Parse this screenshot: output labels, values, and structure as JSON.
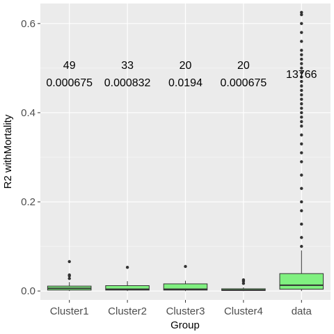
{
  "chart_data": {
    "type": "boxplot",
    "title": "",
    "xlabel": "Group",
    "ylabel": "R2 withMortality",
    "ylim": [
      -0.02,
      0.645
    ],
    "yticks": [
      0.0,
      0.2,
      0.4,
      0.6
    ],
    "ytick_labels": [
      "0.0",
      "0.2",
      "0.4",
      "0.6"
    ],
    "grid": true,
    "categories": [
      "Cluster1",
      "Cluster2",
      "Cluster3",
      "Cluster4",
      "data"
    ],
    "colors": {
      "panel_bg": "#ebebeb",
      "grid": "#ffffff",
      "box_fill": "#80f080",
      "box_line": "#333333",
      "outlier": "#333333"
    },
    "annotations": [
      {
        "count": "49",
        "value": "0.000675"
      },
      {
        "count": "33",
        "value": "0.000832"
      },
      {
        "count": "20",
        "value": "0.0194"
      },
      {
        "count": "20",
        "value": "0.000675"
      },
      {
        "count": "13766",
        "value": ""
      }
    ],
    "boxes": [
      {
        "q1": 0.002,
        "median": 0.006,
        "q3": 0.011,
        "whisker_low": 0.0,
        "whisker_high": 0.02,
        "outliers": [
          0.028,
          0.034,
          0.036,
          0.066
        ]
      },
      {
        "q1": 0.002,
        "median": 0.004,
        "q3": 0.012,
        "whisker_low": 0.0,
        "whisker_high": 0.022,
        "outliers": [
          0.053
        ]
      },
      {
        "q1": 0.002,
        "median": 0.004,
        "q3": 0.016,
        "whisker_low": 0.0,
        "whisker_high": 0.023,
        "outliers": [
          0.055
        ]
      },
      {
        "q1": 0.001,
        "median": 0.002,
        "q3": 0.005,
        "whisker_low": 0.0,
        "whisker_high": 0.008,
        "outliers": [
          0.017,
          0.022,
          0.025
        ]
      },
      {
        "q1": 0.004,
        "median": 0.013,
        "q3": 0.039,
        "whisker_low": 0.0,
        "whisker_high": 0.091,
        "outliers": [
          0.1,
          0.12,
          0.15,
          0.18,
          0.2,
          0.23,
          0.26,
          0.29,
          0.31,
          0.33,
          0.35,
          0.37,
          0.38,
          0.39,
          0.4,
          0.41,
          0.42,
          0.43,
          0.44,
          0.45,
          0.46,
          0.47,
          0.48,
          0.49,
          0.5,
          0.51,
          0.52,
          0.53,
          0.54,
          0.56,
          0.58,
          0.6,
          0.62,
          0.625
        ]
      }
    ]
  }
}
